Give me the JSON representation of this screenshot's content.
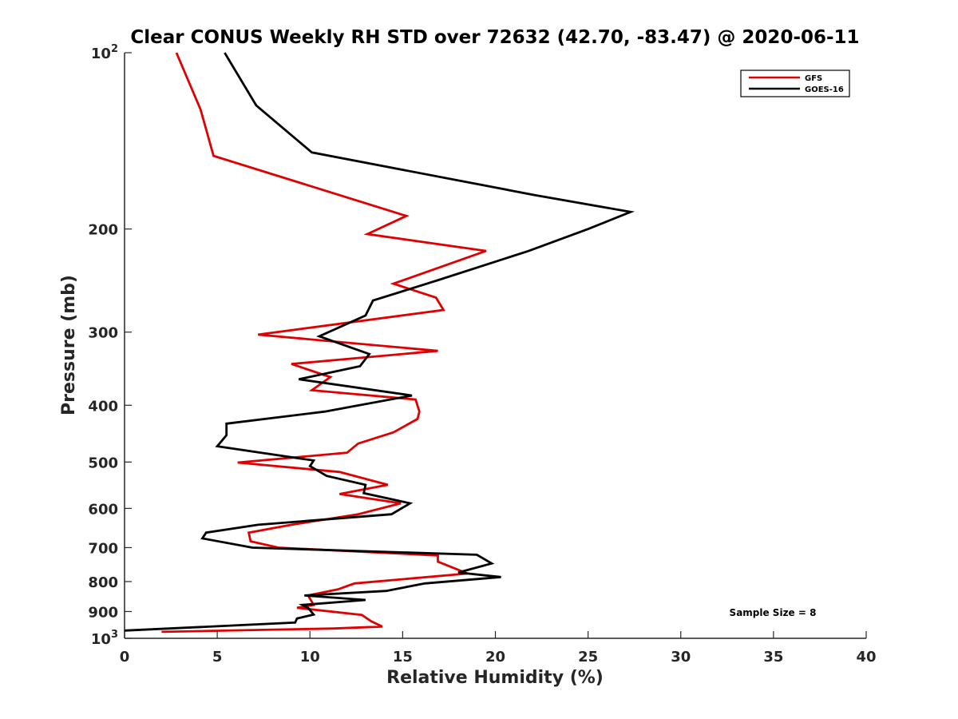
{
  "chart_data": {
    "type": "line",
    "title": "Clear CONUS Weekly RH STD over 72632 (42.70, -83.47) @ 2020-06-11",
    "xlabel": "Relative Humidity (%)",
    "ylabel": "Pressure (mb)",
    "xlim": [
      0,
      40
    ],
    "ylim": [
      100,
      1000
    ],
    "y_scale": "log",
    "y_reversed": true,
    "grid": false,
    "legend_position": "top-right",
    "x_ticks": [
      0,
      5,
      10,
      15,
      20,
      25,
      30,
      35,
      40
    ],
    "y_ticks": [
      100,
      200,
      300,
      400,
      500,
      600,
      700,
      800,
      900,
      1000
    ],
    "y_tick_labels": [
      {
        "base": "10",
        "exp": "2"
      },
      {
        "base": "200"
      },
      {
        "base": "300"
      },
      {
        "base": "400"
      },
      {
        "base": "500"
      },
      {
        "base": "600"
      },
      {
        "base": "700"
      },
      {
        "base": "800"
      },
      {
        "base": "900"
      },
      {
        "base": "10",
        "exp": "3"
      }
    ],
    "annotation": "Sample Size = 8",
    "series": [
      {
        "name": "GFS",
        "color": "#e00000",
        "points": [
          [
            2.8,
            100
          ],
          [
            4.1,
            125
          ],
          [
            4.8,
            150
          ],
          [
            15.2,
            190
          ],
          [
            13.1,
            204
          ],
          [
            19.5,
            218
          ],
          [
            14.5,
            248
          ],
          [
            16.8,
            262
          ],
          [
            17.2,
            275
          ],
          [
            7.2,
            303
          ],
          [
            16.9,
            323
          ],
          [
            9.0,
            340
          ],
          [
            11.1,
            358
          ],
          [
            10.1,
            377
          ],
          [
            15.7,
            391
          ],
          [
            15.9,
            410
          ],
          [
            15.8,
            422
          ],
          [
            14.5,
            445
          ],
          [
            12.6,
            465
          ],
          [
            12.0,
            482
          ],
          [
            6.1,
            501
          ],
          [
            11.6,
            520
          ],
          [
            14.2,
            547
          ],
          [
            11.6,
            567
          ],
          [
            14.9,
            588
          ],
          [
            12.6,
            614
          ],
          [
            9.0,
            640
          ],
          [
            6.7,
            660
          ],
          [
            6.8,
            683
          ],
          [
            8.3,
            700
          ],
          [
            16.9,
            722
          ],
          [
            16.9,
            740
          ],
          [
            18.5,
            775
          ],
          [
            12.4,
            806
          ],
          [
            11.5,
            825
          ],
          [
            9.9,
            845
          ],
          [
            10.2,
            877
          ],
          [
            9.3,
            887
          ],
          [
            12.8,
            912
          ],
          [
            13.3,
            935
          ],
          [
            13.9,
            955
          ],
          [
            11.3,
            962
          ],
          [
            2.0,
            975
          ]
        ]
      },
      {
        "name": "GOES-16",
        "color": "#000000",
        "points": [
          [
            5.4,
            100
          ],
          [
            7.1,
            123
          ],
          [
            10.1,
            148
          ],
          [
            22.1,
            175
          ],
          [
            27.3,
            187
          ],
          [
            25.0,
            200
          ],
          [
            21.8,
            218
          ],
          [
            17.0,
            244
          ],
          [
            13.4,
            265
          ],
          [
            13.0,
            281
          ],
          [
            10.5,
            305
          ],
          [
            13.2,
            327
          ],
          [
            12.7,
            343
          ],
          [
            9.4,
            361
          ],
          [
            15.5,
            385
          ],
          [
            10.8,
            410
          ],
          [
            5.5,
            430
          ],
          [
            5.5,
            450
          ],
          [
            5.0,
            470
          ],
          [
            10.2,
            497
          ],
          [
            10.0,
            508
          ],
          [
            10.9,
            528
          ],
          [
            13.0,
            547
          ],
          [
            12.9,
            565
          ],
          [
            15.4,
            588
          ],
          [
            14.4,
            614
          ],
          [
            7.2,
            640
          ],
          [
            4.4,
            660
          ],
          [
            4.2,
            675
          ],
          [
            6.9,
            700
          ],
          [
            19.0,
            720
          ],
          [
            19.8,
            745
          ],
          [
            18.0,
            772
          ],
          [
            20.3,
            786
          ],
          [
            16.2,
            806
          ],
          [
            14.1,
            830
          ],
          [
            9.7,
            845
          ],
          [
            13.0,
            860
          ],
          [
            9.6,
            877
          ],
          [
            9.9,
            887
          ],
          [
            10.2,
            911
          ],
          [
            9.3,
            925
          ],
          [
            9.2,
            940
          ],
          [
            0.0,
            970
          ]
        ]
      }
    ]
  }
}
